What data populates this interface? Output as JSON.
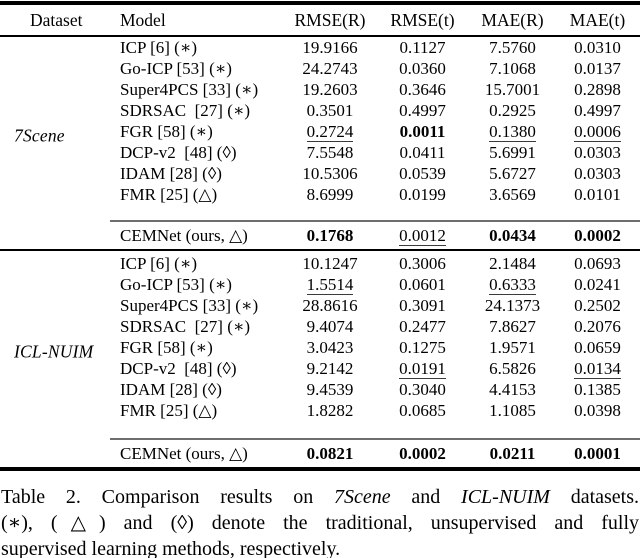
{
  "table": {
    "headers": [
      "Dataset",
      "Model",
      "RMSE(R)",
      "RMSE(t)",
      "MAE(R)",
      "MAE(t)"
    ],
    "groups": [
      {
        "dataset": "7Scene",
        "rows": [
          {
            "model": "ICP [6] (∗)",
            "values": [
              {
                "t": "19.9166"
              },
              {
                "t": "0.1127"
              },
              {
                "t": "7.5760"
              },
              {
                "t": "0.0310"
              }
            ]
          },
          {
            "model": "Go-ICP [53] (∗)",
            "values": [
              {
                "t": "24.2743"
              },
              {
                "t": "0.0360"
              },
              {
                "t": "7.1068"
              },
              {
                "t": "0.0137"
              }
            ]
          },
          {
            "model": "Super4PCS [33] (∗)",
            "values": [
              {
                "t": "19.2603"
              },
              {
                "t": "0.3646"
              },
              {
                "t": "15.7001"
              },
              {
                "t": "0.2898"
              }
            ]
          },
          {
            "model": "SDRSAC  [27] (∗)",
            "values": [
              {
                "t": "0.3501"
              },
              {
                "t": "0.4997"
              },
              {
                "t": "0.2925"
              },
              {
                "t": "0.4997"
              }
            ]
          },
          {
            "model": "FGR [58] (∗)",
            "values": [
              {
                "t": "0.2724",
                "u": true
              },
              {
                "t": "0.0011",
                "b": true
              },
              {
                "t": "0.1380",
                "u": true
              },
              {
                "t": "0.0006",
                "u": true
              }
            ]
          },
          {
            "model": "DCP-v2  [48] (◊)",
            "values": [
              {
                "t": "7.5548"
              },
              {
                "t": "0.0411"
              },
              {
                "t": "5.6991"
              },
              {
                "t": "0.0303"
              }
            ]
          },
          {
            "model": "IDAM [28] (◊)",
            "values": [
              {
                "t": "10.5306"
              },
              {
                "t": "0.0539"
              },
              {
                "t": "5.6727"
              },
              {
                "t": "0.0303"
              }
            ]
          },
          {
            "model": "FMR [25] (△)",
            "values": [
              {
                "t": "8.6999"
              },
              {
                "t": "0.0199"
              },
              {
                "t": "3.6569"
              },
              {
                "t": "0.0101"
              }
            ]
          }
        ],
        "ours": {
          "model": "CEMNet (ours, △)",
          "values": [
            {
              "t": "0.1768",
              "b": true
            },
            {
              "t": "0.0012",
              "u": true
            },
            {
              "t": "0.0434",
              "b": true
            },
            {
              "t": "0.0002",
              "b": true
            }
          ]
        }
      },
      {
        "dataset": "ICL-NUIM",
        "rows": [
          {
            "model": "ICP [6] (∗)",
            "values": [
              {
                "t": "10.1247"
              },
              {
                "t": "0.3006"
              },
              {
                "t": "2.1484"
              },
              {
                "t": "0.0693"
              }
            ]
          },
          {
            "model": "Go-ICP [53] (∗)",
            "values": [
              {
                "t": "1.5514",
                "u": true
              },
              {
                "t": "0.0601"
              },
              {
                "t": "0.6333",
                "u": true
              },
              {
                "t": "0.0241"
              }
            ]
          },
          {
            "model": "Super4PCS [33] (∗)",
            "values": [
              {
                "t": "28.8616"
              },
              {
                "t": "0.3091"
              },
              {
                "t": "24.1373"
              },
              {
                "t": "0.2502"
              }
            ]
          },
          {
            "model": "SDRSAC  [27] (∗)",
            "values": [
              {
                "t": "9.4074"
              },
              {
                "t": "0.2477"
              },
              {
                "t": "7.8627"
              },
              {
                "t": "0.2076"
              }
            ]
          },
          {
            "model": "FGR [58] (∗)",
            "values": [
              {
                "t": "3.0423"
              },
              {
                "t": "0.1275"
              },
              {
                "t": "1.9571"
              },
              {
                "t": "0.0659"
              }
            ]
          },
          {
            "model": "DCP-v2  [48] (◊)",
            "values": [
              {
                "t": "9.2142"
              },
              {
                "t": "0.0191",
                "u": true
              },
              {
                "t": "6.5826"
              },
              {
                "t": "0.0134",
                "u": true
              }
            ]
          },
          {
            "model": "IDAM [28] (◊)",
            "values": [
              {
                "t": "9.4539"
              },
              {
                "t": "0.3040"
              },
              {
                "t": "4.4153"
              },
              {
                "t": "0.1385"
              }
            ]
          },
          {
            "model": "FMR [25] (△)",
            "values": [
              {
                "t": "1.8282"
              },
              {
                "t": "0.0685"
              },
              {
                "t": "1.1085"
              },
              {
                "t": "0.0398"
              }
            ]
          }
        ],
        "ours": {
          "model": "CEMNet (ours, △)",
          "values": [
            {
              "t": "0.0821",
              "b": true
            },
            {
              "t": "0.0002",
              "b": true
            },
            {
              "t": "0.0211",
              "b": true
            },
            {
              "t": "0.0001",
              "b": true
            }
          ]
        }
      }
    ]
  },
  "caption": {
    "lines": [
      {
        "justify": true,
        "segments": [
          {
            "t": "Table 2. Comparison results on "
          },
          {
            "t": "7Scene",
            "i": true
          },
          {
            "t": " and "
          },
          {
            "t": "ICL-NUIM",
            "i": true
          },
          {
            "t": " datasets."
          }
        ]
      },
      {
        "justify": true,
        "segments": [
          {
            "t": "(∗), (△) and (◊) denote the traditional, unsupervised and fully"
          }
        ]
      },
      {
        "justify": false,
        "segments": [
          {
            "t": "supervised learning methods, respectively."
          }
        ]
      }
    ]
  },
  "colors": {
    "text": "#000000",
    "rule": "#000000",
    "thin_rule": "#6e6e6e",
    "underline": "#3a3a3a",
    "background": "#ffffff"
  }
}
